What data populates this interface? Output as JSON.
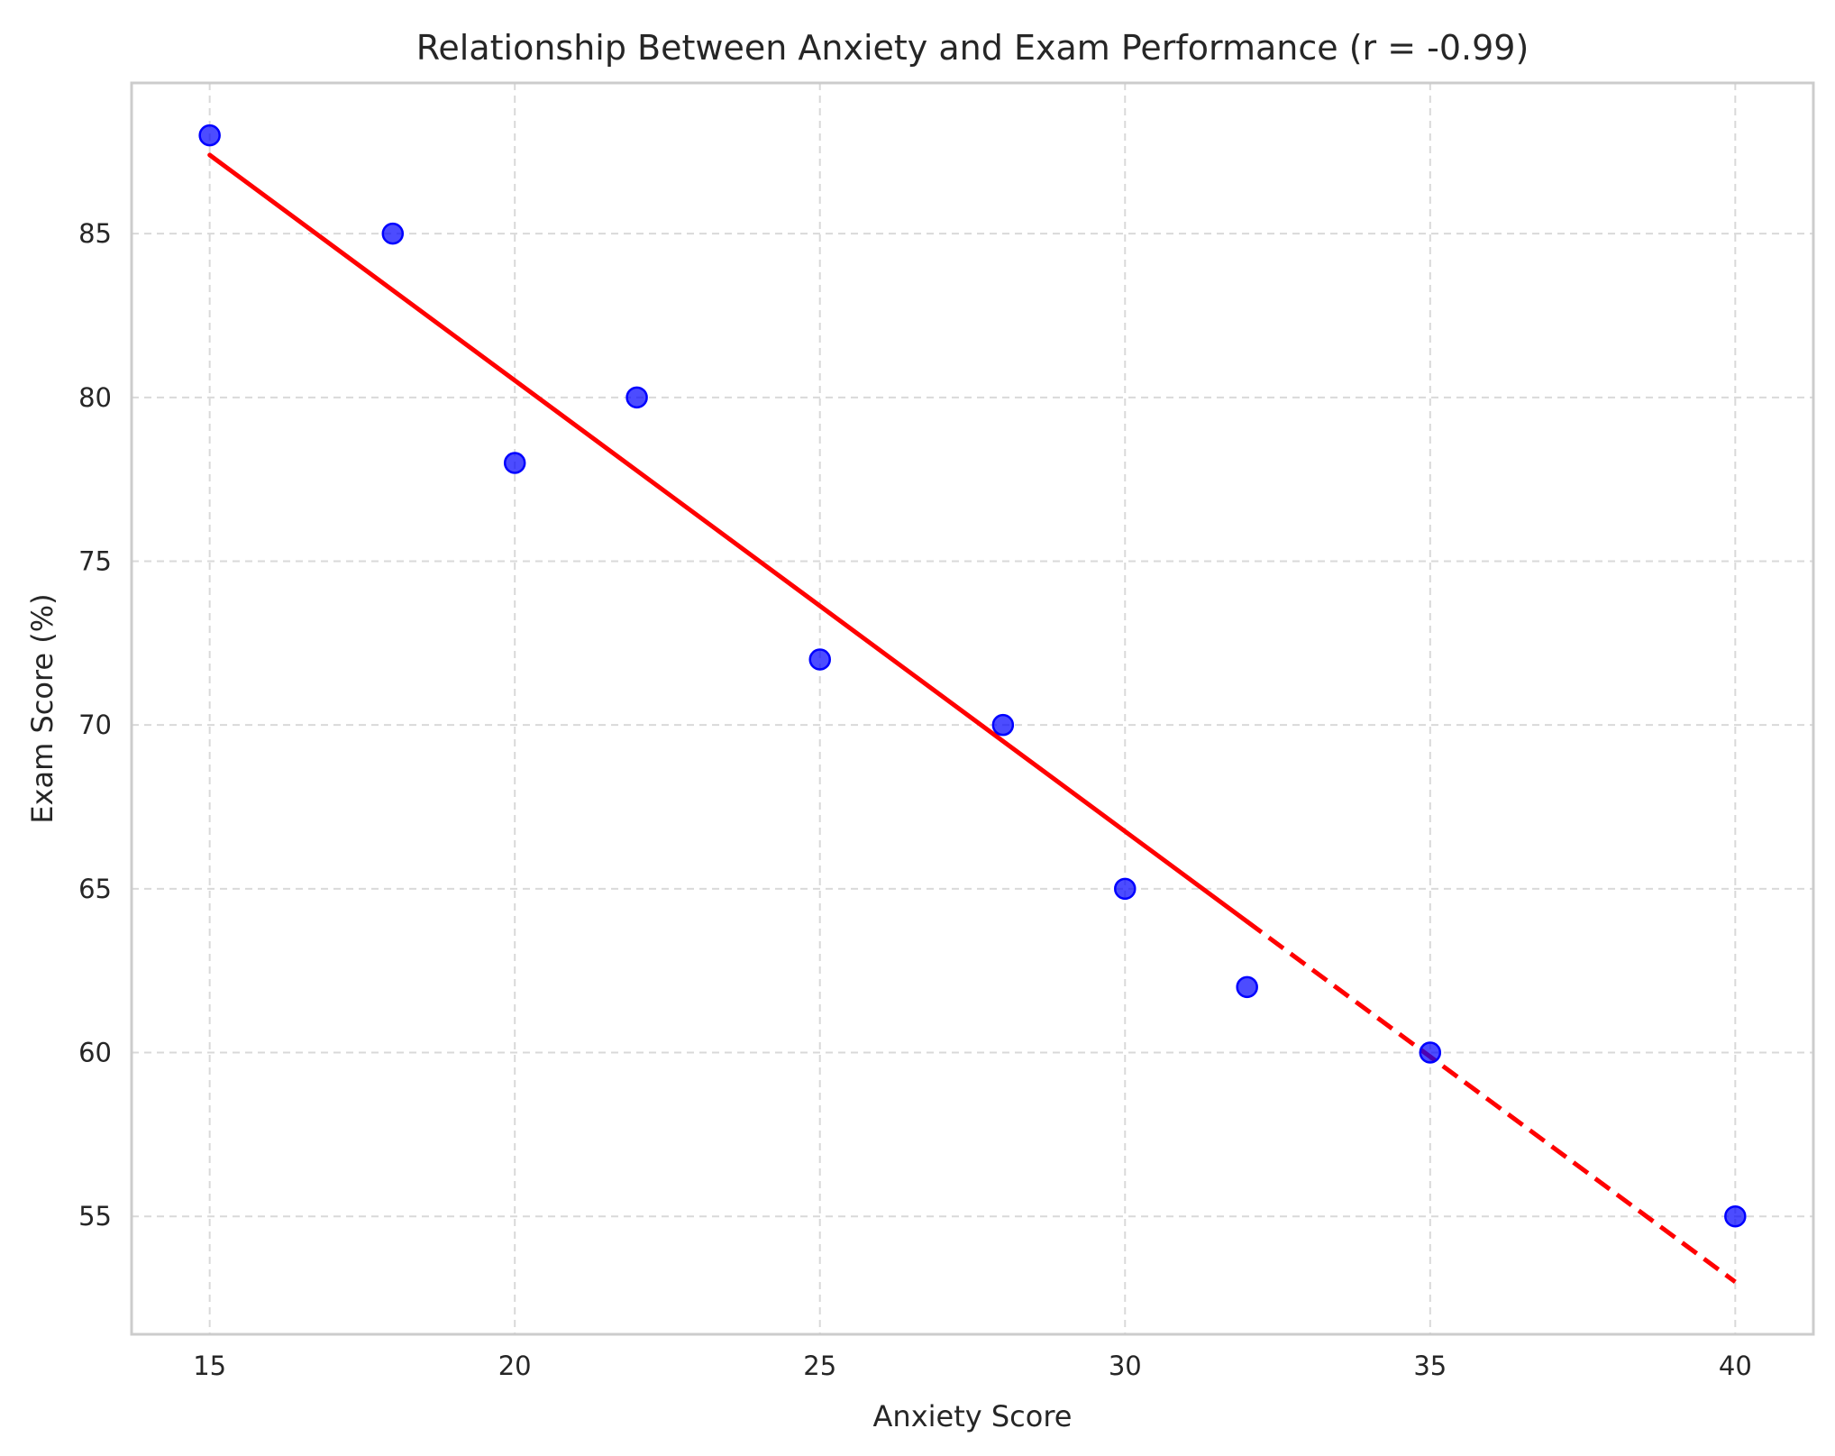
{
  "chart_data": {
    "type": "scatter",
    "title": "Relationship Between Anxiety and Exam Performance (r = -0.99)",
    "xlabel": "Anxiety Score",
    "ylabel": "Exam Score (%)",
    "xlim": [
      13.72,
      41.28
    ],
    "ylim": [
      51.4,
      89.6
    ],
    "xticks": [
      15,
      20,
      25,
      30,
      35,
      40
    ],
    "yticks": [
      55,
      60,
      65,
      70,
      75,
      80,
      85
    ],
    "grid": true,
    "grid_style": "dashed",
    "points": {
      "x": [
        15,
        18,
        20,
        22,
        25,
        28,
        30,
        32,
        35,
        40
      ],
      "y": [
        88,
        85,
        78,
        80,
        72,
        70,
        65,
        62,
        60,
        55
      ],
      "color": "#0000ff"
    },
    "trend_line": {
      "color": "#ff0000",
      "solid": {
        "x": [
          15,
          32
        ],
        "y": [
          87.4,
          64.0
        ]
      },
      "dashed": {
        "x": [
          32,
          40
        ],
        "y": [
          64.0,
          53.0
        ]
      }
    }
  }
}
